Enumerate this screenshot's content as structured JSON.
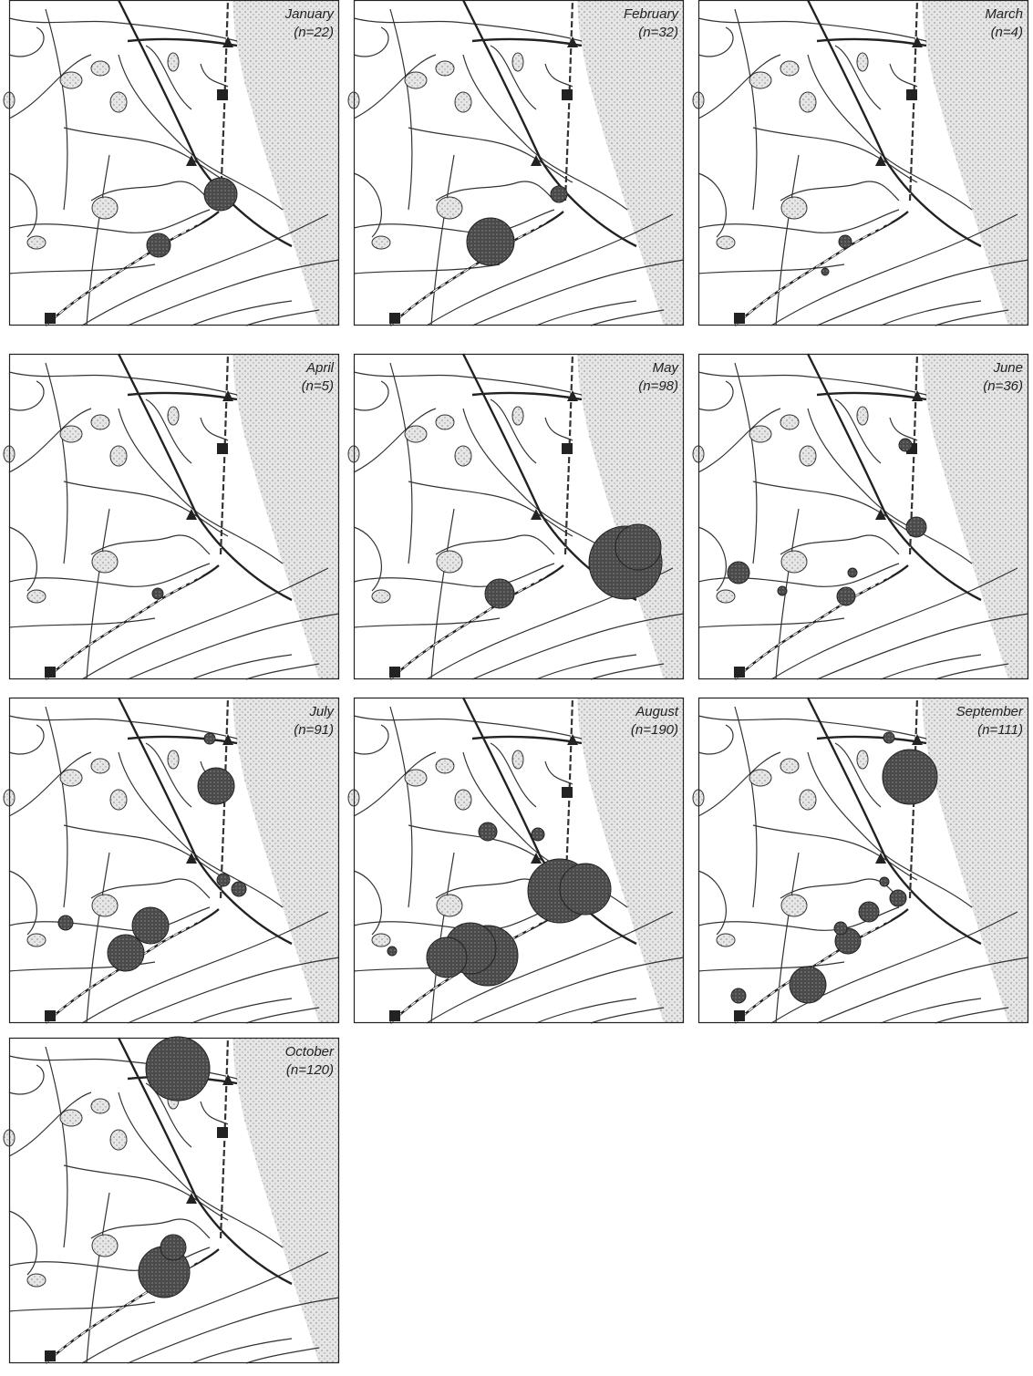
{
  "panels": [
    {
      "month": "January",
      "n": "(n=22)"
    },
    {
      "month": "February",
      "n": "(n=32)"
    },
    {
      "month": "March",
      "n": "(n=4)"
    },
    {
      "month": "April",
      "n": "(n=5)"
    },
    {
      "month": "May",
      "n": "(n=98)"
    },
    {
      "month": "June",
      "n": "(n=36)"
    },
    {
      "month": "July",
      "n": "(n=91)"
    },
    {
      "month": "August",
      "n": "(n=190)"
    },
    {
      "month": "September",
      "n": "(n=111)"
    },
    {
      "month": "October",
      "n": "(n=120)"
    }
  ]
}
